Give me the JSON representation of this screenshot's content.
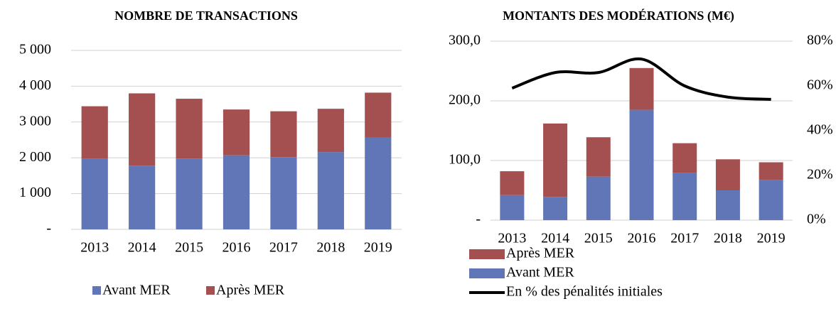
{
  "chart_data": [
    {
      "type": "bar",
      "stacked": true,
      "title": "NOMBRE DE TRANSACTIONS",
      "categories": [
        "2013",
        "2014",
        "2015",
        "2016",
        "2017",
        "2018",
        "2019"
      ],
      "series": [
        {
          "name": "Avant MER",
          "color": "#6176b6",
          "values": [
            1970,
            1780,
            1980,
            2070,
            2020,
            2160,
            2570
          ]
        },
        {
          "name": "Après MER",
          "color": "#a55050",
          "values": [
            1470,
            2020,
            1670,
            1280,
            1280,
            1210,
            1250
          ]
        }
      ],
      "ylim": [
        0,
        5000
      ],
      "yticks": [
        {
          "value": 0,
          "label": "-"
        },
        {
          "value": 1000,
          "label": "1 000"
        },
        {
          "value": 2000,
          "label": "2 000"
        },
        {
          "value": 3000,
          "label": "3 000"
        },
        {
          "value": 4000,
          "label": "4 000"
        },
        {
          "value": 5000,
          "label": "5 000"
        }
      ],
      "grid": true,
      "legend": "bottom"
    },
    {
      "type": "bar",
      "stacked": true,
      "title": "MONTANTS DES MODÉRATIONS (M€)",
      "categories": [
        "2013",
        "2014",
        "2015",
        "2016",
        "2017",
        "2018",
        "2019"
      ],
      "series": [
        {
          "name": "Avant MER",
          "color": "#6176b6",
          "values": [
            42,
            39,
            73,
            185,
            79,
            50,
            67
          ]
        },
        {
          "name": "Après MER",
          "color": "#a55050",
          "values": [
            40,
            123,
            66,
            70,
            50,
            52,
            30
          ]
        },
        {
          "name": "En % des pénalités initiales",
          "color": "#000000",
          "type": "line",
          "axis": "y2",
          "values": [
            59,
            66,
            66,
            72,
            60,
            55,
            54
          ]
        }
      ],
      "ylim": [
        0,
        300
      ],
      "yticks": [
        {
          "value": 0,
          "label": "-"
        },
        {
          "value": 100,
          "label": "100,0"
        },
        {
          "value": 200,
          "label": "200,0"
        },
        {
          "value": 300,
          "label": "300,0"
        }
      ],
      "y2lim": [
        0,
        80
      ],
      "y2ticks": [
        {
          "value": 0,
          "label": "0%"
        },
        {
          "value": 20,
          "label": "20%"
        },
        {
          "value": 40,
          "label": "40%"
        },
        {
          "value": 60,
          "label": "60%"
        },
        {
          "value": 80,
          "label": "80%"
        }
      ],
      "grid": true,
      "legend": "bottom"
    }
  ]
}
